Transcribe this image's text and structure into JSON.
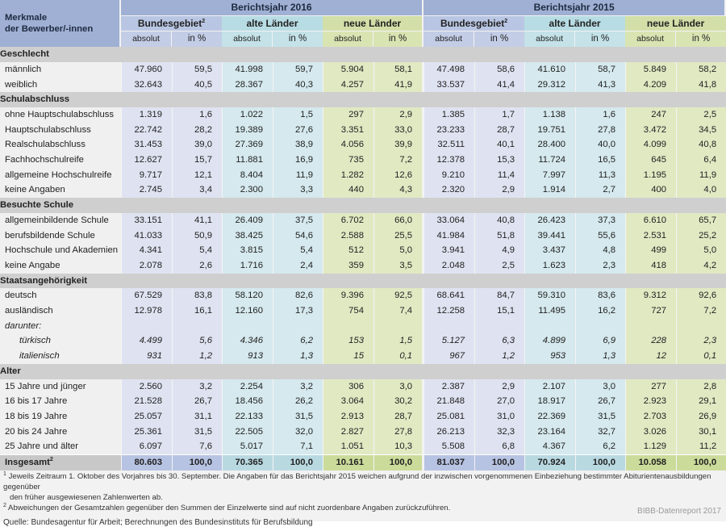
{
  "header": {
    "row_label": "Merkmale der Bewerber/-innen",
    "row_label_line1": "Merkmale",
    "row_label_line2": "der Bewerber/-innen",
    "years": [
      "Berichtsjahr 2016",
      "Berichtsjahr 2015"
    ],
    "groups": [
      "Bundesgebiet",
      "alte Länder",
      "neue Länder"
    ],
    "group_footnote": "2",
    "sub_abs": "absolut",
    "sub_pct": "in %"
  },
  "sections": [
    {
      "title": "Geschlecht",
      "rows": [
        {
          "label": "männlich",
          "v": [
            "47.960",
            "59,5",
            "41.998",
            "59,7",
            "5.904",
            "58,1",
            "47.498",
            "58,6",
            "41.610",
            "58,7",
            "5.849",
            "58,2"
          ]
        },
        {
          "label": "weiblich",
          "v": [
            "32.643",
            "40,5",
            "28.367",
            "40,3",
            "4.257",
            "41,9",
            "33.537",
            "41,4",
            "29.312",
            "41,3",
            "4.209",
            "41,8"
          ]
        }
      ]
    },
    {
      "title": "Schulabschluss",
      "rows": [
        {
          "label": "ohne Hauptschulabschluss",
          "v": [
            "1.319",
            "1,6",
            "1.022",
            "1,5",
            "297",
            "2,9",
            "1.385",
            "1,7",
            "1.138",
            "1,6",
            "247",
            "2,5"
          ]
        },
        {
          "label": "Hauptschulabschluss",
          "v": [
            "22.742",
            "28,2",
            "19.389",
            "27,6",
            "3.351",
            "33,0",
            "23.233",
            "28,7",
            "19.751",
            "27,8",
            "3.472",
            "34,5"
          ]
        },
        {
          "label": "Realschulabschluss",
          "v": [
            "31.453",
            "39,0",
            "27.369",
            "38,9",
            "4.056",
            "39,9",
            "32.511",
            "40,1",
            "28.400",
            "40,0",
            "4.099",
            "40,8"
          ]
        },
        {
          "label": "Fachhochschulreife",
          "v": [
            "12.627",
            "15,7",
            "11.881",
            "16,9",
            "735",
            "7,2",
            "12.378",
            "15,3",
            "11.724",
            "16,5",
            "645",
            "6,4"
          ]
        },
        {
          "label": "allgemeine Hochschulreife",
          "v": [
            "9.717",
            "12,1",
            "8.404",
            "11,9",
            "1.282",
            "12,6",
            "9.210",
            "11,4",
            "7.997",
            "11,3",
            "1.195",
            "11,9"
          ]
        },
        {
          "label": "keine Angaben",
          "v": [
            "2.745",
            "3,4",
            "2.300",
            "3,3",
            "440",
            "4,3",
            "2.320",
            "2,9",
            "1.914",
            "2,7",
            "400",
            "4,0"
          ]
        }
      ]
    },
    {
      "title": "Besuchte Schule",
      "rows": [
        {
          "label": "allgemeinbildende Schule",
          "v": [
            "33.151",
            "41,1",
            "26.409",
            "37,5",
            "6.702",
            "66,0",
            "33.064",
            "40,8",
            "26.423",
            "37,3",
            "6.610",
            "65,7"
          ]
        },
        {
          "label": "berufsbildende Schule",
          "v": [
            "41.033",
            "50,9",
            "38.425",
            "54,6",
            "2.588",
            "25,5",
            "41.984",
            "51,8",
            "39.441",
            "55,6",
            "2.531",
            "25,2"
          ]
        },
        {
          "label": "Hochschule und Akademien",
          "v": [
            "4.341",
            "5,4",
            "3.815",
            "5,4",
            "512",
            "5,0",
            "3.941",
            "4,9",
            "3.437",
            "4,8",
            "499",
            "5,0"
          ]
        },
        {
          "label": "keine Angabe",
          "v": [
            "2.078",
            "2,6",
            "1.716",
            "2,4",
            "359",
            "3,5",
            "2.048",
            "2,5",
            "1.623",
            "2,3",
            "418",
            "4,2"
          ]
        }
      ]
    },
    {
      "title": "Staatsangehörigkeit",
      "rows": [
        {
          "label": "deutsch",
          "v": [
            "67.529",
            "83,8",
            "58.120",
            "82,6",
            "9.396",
            "92,5",
            "68.641",
            "84,7",
            "59.310",
            "83,6",
            "9.312",
            "92,6"
          ]
        },
        {
          "label": "ausländisch",
          "v": [
            "12.978",
            "16,1",
            "12.160",
            "17,3",
            "754",
            "7,4",
            "12.258",
            "15,1",
            "11.495",
            "16,2",
            "727",
            "7,2"
          ]
        },
        {
          "label": "darunter:",
          "v": [
            "",
            "",
            "",
            "",
            "",
            "",
            "",
            "",
            "",
            "",
            "",
            ""
          ],
          "italic": true
        },
        {
          "label": "türkisch",
          "v": [
            "4.499",
            "5,6",
            "4.346",
            "6,2",
            "153",
            "1,5",
            "5.127",
            "6,3",
            "4.899",
            "6,9",
            "228",
            "2,3"
          ],
          "italic": true,
          "indent": true
        },
        {
          "label": "italienisch",
          "v": [
            "931",
            "1,2",
            "913",
            "1,3",
            "15",
            "0,1",
            "967",
            "1,2",
            "953",
            "1,3",
            "12",
            "0,1"
          ],
          "italic": true,
          "indent": true
        }
      ]
    },
    {
      "title": "Alter",
      "rows": [
        {
          "label": "15 Jahre und jünger",
          "v": [
            "2.560",
            "3,2",
            "2.254",
            "3,2",
            "306",
            "3,0",
            "2.387",
            "2,9",
            "2.107",
            "3,0",
            "277",
            "2,8"
          ]
        },
        {
          "label": "16 bis 17 Jahre",
          "v": [
            "21.528",
            "26,7",
            "18.456",
            "26,2",
            "3.064",
            "30,2",
            "21.848",
            "27,0",
            "18.917",
            "26,7",
            "2.923",
            "29,1"
          ]
        },
        {
          "label": "18 bis 19 Jahre",
          "v": [
            "25.057",
            "31,1",
            "22.133",
            "31,5",
            "2.913",
            "28,7",
            "25.081",
            "31,0",
            "22.369",
            "31,5",
            "2.703",
            "26,9"
          ]
        },
        {
          "label": "20 bis 24 Jahre",
          "v": [
            "25.361",
            "31,5",
            "22.505",
            "32,0",
            "2.827",
            "27,8",
            "26.213",
            "32,3",
            "23.164",
            "32,7",
            "3.026",
            "30,1"
          ]
        },
        {
          "label": "25 Jahre und älter",
          "v": [
            "6.097",
            "7,6",
            "5.017",
            "7,1",
            "1.051",
            "10,3",
            "5.508",
            "6,8",
            "4.367",
            "6,2",
            "1.129",
            "11,2"
          ]
        }
      ]
    }
  ],
  "total": {
    "label": "Insgesamt",
    "footnote": "2",
    "v": [
      "80.603",
      "100,0",
      "70.365",
      "100,0",
      "10.161",
      "100,0",
      "81.037",
      "100,0",
      "70.924",
      "100,0",
      "10.058",
      "100,0"
    ]
  },
  "footnotes": [
    {
      "mark": "1",
      "text": "Jeweils Zeitraum 1. Oktober des Vorjahres bis 30. September. Die Angaben für das Berichtsjahr 2015 weichen aufgrund der inzwischen vorgenommenen Einbeziehung bestimmter Abiturientenausbildungen gegenüber",
      "text2": "den früher ausgewiesenen Zahlenwerten ab."
    },
    {
      "mark": "2",
      "text": "Abweichungen der Gesamtzahlen gegenüber den Summen der Einzelwerte sind auf nicht zuordenbare Angaben zurückzuführen."
    }
  ],
  "source": "Quelle: Bundesagentur für Arbeit; Berechnungen des Bundesinstituts für Berufsbildung",
  "brand": "BIBB-Datenreport 2017",
  "colors": {
    "header_blue": "#9fb0d4",
    "bundesgebiet": "#dfe3f1",
    "alte_laender": "#d5e9ee",
    "neue_laender": "#e1e9c3",
    "section_gray": "#cfcfcf"
  }
}
